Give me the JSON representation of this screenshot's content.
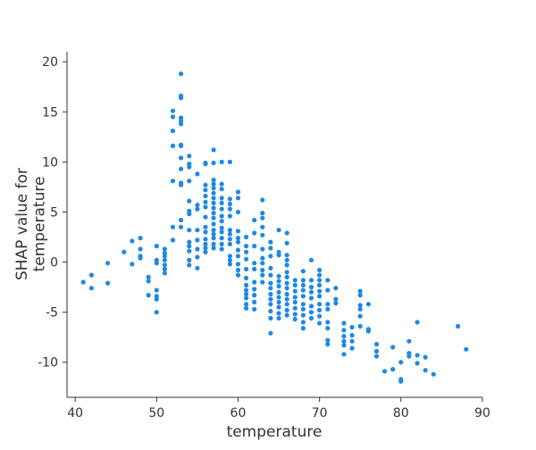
{
  "chart_data": {
    "type": "scatter",
    "title": "",
    "xlabel": "temperature",
    "ylabel": "SHAP value for\ntemperature",
    "xlim": [
      39,
      90
    ],
    "ylim": [
      -13.5,
      21
    ],
    "xticks": [
      40,
      50,
      60,
      70,
      80,
      90
    ],
    "yticks": [
      -10,
      -5,
      0,
      5,
      10,
      15,
      20
    ],
    "grid": false,
    "legend": "none",
    "point_color": "#1e88e5",
    "series": [
      {
        "points": [
          [
            41,
            -2.0
          ],
          [
            42,
            -1.3
          ],
          [
            42,
            -2.6
          ],
          [
            44,
            -0.1
          ],
          [
            44,
            -2.1
          ],
          [
            46,
            1.0
          ],
          [
            47,
            2.1
          ],
          [
            47,
            -0.2
          ],
          [
            48,
            2.4
          ],
          [
            48,
            1.3
          ],
          [
            48,
            0.6
          ],
          [
            48,
            0.4
          ],
          [
            49,
            -1.5
          ],
          [
            49,
            -1.9
          ],
          [
            49,
            -3.3
          ],
          [
            50,
            1.6
          ],
          [
            50,
            0.2
          ],
          [
            50,
            -0.1
          ],
          [
            50,
            -2.8
          ],
          [
            50,
            -3.4
          ],
          [
            50,
            -3.7
          ],
          [
            50,
            -5.0
          ],
          [
            51,
            1.3
          ],
          [
            51,
            0.9
          ],
          [
            51,
            0.6
          ],
          [
            51,
            0.2
          ],
          [
            51,
            -0.3
          ],
          [
            51,
            -0.7
          ],
          [
            51,
            -1.1
          ],
          [
            52,
            15.1
          ],
          [
            52,
            14.5
          ],
          [
            52,
            13.1
          ],
          [
            52,
            11.6
          ],
          [
            52,
            8.1
          ],
          [
            52,
            3.5
          ],
          [
            52,
            2.2
          ],
          [
            53,
            18.8
          ],
          [
            53,
            16.6
          ],
          [
            53,
            16.4
          ],
          [
            53,
            14.4
          ],
          [
            53,
            14.1
          ],
          [
            53,
            13.8
          ],
          [
            53,
            11.7
          ],
          [
            53,
            11.6
          ],
          [
            53,
            10.4
          ],
          [
            53,
            9.3
          ],
          [
            53,
            7.9
          ],
          [
            53,
            7.7
          ],
          [
            53,
            4.2
          ],
          [
            53,
            3.5
          ],
          [
            54,
            10.6
          ],
          [
            54,
            9.8
          ],
          [
            54,
            9.5
          ],
          [
            54,
            8.1
          ],
          [
            54,
            6.1
          ],
          [
            54,
            5.1
          ],
          [
            54,
            4.8
          ],
          [
            54,
            3.2
          ],
          [
            54,
            2.0
          ],
          [
            54,
            1.6
          ],
          [
            54,
            1.1
          ],
          [
            54,
            0.2
          ],
          [
            54,
            -0.3
          ],
          [
            55,
            8.8
          ],
          [
            55,
            5.7
          ],
          [
            55,
            5.3
          ],
          [
            55,
            3.2
          ],
          [
            55,
            2.2
          ],
          [
            55,
            1.3
          ],
          [
            55,
            0.5
          ],
          [
            55,
            -0.6
          ],
          [
            56,
            9.9
          ],
          [
            56,
            9.8
          ],
          [
            56,
            7.7
          ],
          [
            56,
            7.2
          ],
          [
            56,
            6.6
          ],
          [
            56,
            6.0
          ],
          [
            56,
            5.5
          ],
          [
            56,
            4.5
          ],
          [
            56,
            3.5
          ],
          [
            56,
            3.0
          ],
          [
            56,
            2.3
          ],
          [
            56,
            1.8
          ],
          [
            56,
            1.4
          ],
          [
            56,
            1.0
          ],
          [
            57,
            11.2
          ],
          [
            57,
            9.9
          ],
          [
            57,
            8.2
          ],
          [
            57,
            7.8
          ],
          [
            57,
            7.4
          ],
          [
            57,
            6.9
          ],
          [
            57,
            6.4
          ],
          [
            57,
            5.9
          ],
          [
            57,
            5.4
          ],
          [
            57,
            4.9
          ],
          [
            57,
            4.4
          ],
          [
            57,
            3.8
          ],
          [
            57,
            3.2
          ],
          [
            57,
            2.8
          ],
          [
            57,
            2.4
          ],
          [
            57,
            1.8
          ],
          [
            57,
            1.4
          ],
          [
            58,
            10.0
          ],
          [
            58,
            7.8
          ],
          [
            58,
            7.3
          ],
          [
            58,
            6.4
          ],
          [
            58,
            5.9
          ],
          [
            58,
            5.3
          ],
          [
            58,
            4.6
          ],
          [
            58,
            4.1
          ],
          [
            58,
            3.4
          ],
          [
            58,
            3.0
          ],
          [
            58,
            2.4
          ],
          [
            58,
            1.8
          ],
          [
            58,
            1.3
          ],
          [
            59,
            10.0
          ],
          [
            59,
            6.3
          ],
          [
            59,
            5.8
          ],
          [
            59,
            5.3
          ],
          [
            59,
            4.6
          ],
          [
            59,
            3.2
          ],
          [
            59,
            2.8
          ],
          [
            59,
            2.3
          ],
          [
            59,
            1.8
          ],
          [
            59,
            0.6
          ],
          [
            59,
            0.2
          ],
          [
            59,
            -0.2
          ],
          [
            60,
            7.0
          ],
          [
            60,
            6.4
          ],
          [
            60,
            5.0
          ],
          [
            60,
            3.1
          ],
          [
            60,
            2.4
          ],
          [
            60,
            2.0
          ],
          [
            60,
            1.2
          ],
          [
            60,
            0.6
          ],
          [
            60,
            -0.2
          ],
          [
            60,
            -0.8
          ],
          [
            60,
            -1.3
          ],
          [
            61,
            2.5
          ],
          [
            61,
            1.6
          ],
          [
            61,
            1.0
          ],
          [
            61,
            0.3
          ],
          [
            61,
            -0.7
          ],
          [
            61,
            -1.6
          ],
          [
            61,
            -2.3
          ],
          [
            61,
            -2.8
          ],
          [
            61,
            -3.2
          ],
          [
            61,
            -3.6
          ],
          [
            61,
            -4.2
          ],
          [
            61,
            -4.6
          ],
          [
            62,
            4.2
          ],
          [
            62,
            2.9
          ],
          [
            62,
            1.6
          ],
          [
            62,
            -0.1
          ],
          [
            62,
            -0.7
          ],
          [
            62,
            -2.0
          ],
          [
            62,
            -2.7
          ],
          [
            62,
            -3.3
          ],
          [
            62,
            -4.0
          ],
          [
            62,
            -4.7
          ],
          [
            63,
            6.2
          ],
          [
            63,
            4.9
          ],
          [
            63,
            4.4
          ],
          [
            63,
            3.5
          ],
          [
            63,
            2.7
          ],
          [
            63,
            1.3
          ],
          [
            63,
            0.4
          ],
          [
            63,
            -0.1
          ],
          [
            63,
            -0.8
          ],
          [
            63,
            -1.3
          ],
          [
            63,
            -2.0
          ],
          [
            64,
            2.0
          ],
          [
            64,
            1.4
          ],
          [
            64,
            0.6
          ],
          [
            64,
            -0.6
          ],
          [
            64,
            -1.3
          ],
          [
            64,
            -2.1
          ],
          [
            64,
            -2.6
          ],
          [
            64,
            -3.2
          ],
          [
            64,
            -3.7
          ],
          [
            64,
            -4.2
          ],
          [
            64,
            -4.9
          ],
          [
            64,
            -5.6
          ],
          [
            64,
            -7.1
          ],
          [
            65,
            3.2
          ],
          [
            65,
            1.0
          ],
          [
            65,
            0.7
          ],
          [
            65,
            -1.4
          ],
          [
            65,
            -1.9
          ],
          [
            65,
            -2.4
          ],
          [
            65,
            -3.0
          ],
          [
            65,
            -3.5
          ],
          [
            65,
            -4.0
          ],
          [
            65,
            -4.5
          ],
          [
            65,
            -5.1
          ],
          [
            65,
            -5.6
          ],
          [
            66,
            2.9
          ],
          [
            66,
            1.9
          ],
          [
            66,
            0.7
          ],
          [
            66,
            0.2
          ],
          [
            66,
            -0.3
          ],
          [
            66,
            -1.0
          ],
          [
            66,
            -1.5
          ],
          [
            66,
            -2.1
          ],
          [
            66,
            -2.6
          ],
          [
            66,
            -3.2
          ],
          [
            66,
            -3.7
          ],
          [
            66,
            -4.2
          ],
          [
            66,
            -4.8
          ],
          [
            66,
            -5.3
          ],
          [
            67,
            -1.8
          ],
          [
            67,
            -2.3
          ],
          [
            67,
            -2.9
          ],
          [
            67,
            -3.5
          ],
          [
            67,
            -4.0
          ],
          [
            67,
            -4.6
          ],
          [
            67,
            -5.2
          ],
          [
            67,
            -5.7
          ],
          [
            68,
            -0.9
          ],
          [
            68,
            -1.8
          ],
          [
            68,
            -2.3
          ],
          [
            68,
            -2.8
          ],
          [
            68,
            -3.4
          ],
          [
            68,
            -4.2
          ],
          [
            68,
            -4.7
          ],
          [
            68,
            -5.3
          ],
          [
            68,
            -6.0
          ],
          [
            68,
            -6.6
          ],
          [
            69,
            0.2
          ],
          [
            69,
            -1.8
          ],
          [
            69,
            -2.5
          ],
          [
            69,
            -3.0
          ],
          [
            69,
            -3.6
          ],
          [
            69,
            -4.4
          ],
          [
            69,
            -5.0
          ],
          [
            69,
            -5.6
          ],
          [
            70,
            -0.8
          ],
          [
            70,
            -1.3
          ],
          [
            70,
            -1.8
          ],
          [
            70,
            -2.3
          ],
          [
            70,
            -2.9
          ],
          [
            70,
            -3.4
          ],
          [
            70,
            -4.2
          ],
          [
            70,
            -4.8
          ],
          [
            70,
            -5.4
          ],
          [
            70,
            -6.1
          ],
          [
            71,
            -1.8
          ],
          [
            71,
            -2.8
          ],
          [
            71,
            -4.2
          ],
          [
            71,
            -4.7
          ],
          [
            71,
            -6.0
          ],
          [
            71,
            -6.6
          ],
          [
            71,
            -7.8
          ],
          [
            71,
            -8.2
          ],
          [
            72,
            -2.6
          ],
          [
            72,
            -3.7
          ],
          [
            72,
            -4.1
          ],
          [
            73,
            -6.1
          ],
          [
            73,
            -6.8
          ],
          [
            73,
            -7.4
          ],
          [
            73,
            -7.9
          ],
          [
            73,
            -8.3
          ],
          [
            73,
            -9.2
          ],
          [
            74,
            -6.5
          ],
          [
            74,
            -7.3
          ],
          [
            74,
            -7.9
          ],
          [
            74,
            -8.6
          ],
          [
            75,
            -2.9
          ],
          [
            75,
            -3.3
          ],
          [
            75,
            -4.3
          ],
          [
            75,
            -4.7
          ],
          [
            75,
            -5.4
          ],
          [
            75,
            -6.4
          ],
          [
            76,
            -4.2
          ],
          [
            76,
            -6.7
          ],
          [
            76,
            -6.9
          ],
          [
            77,
            -8.2
          ],
          [
            77,
            -8.9
          ],
          [
            77,
            -9.4
          ],
          [
            78,
            -10.9
          ],
          [
            79,
            -8.5
          ],
          [
            79,
            -10.7
          ],
          [
            80,
            -10.0
          ],
          [
            80,
            -11.7
          ],
          [
            80,
            -11.9
          ],
          [
            81,
            -7.9
          ],
          [
            81,
            -9.1
          ],
          [
            81,
            -9.4
          ],
          [
            82,
            -6.0
          ],
          [
            82,
            -9.3
          ],
          [
            82,
            -10.1
          ],
          [
            83,
            -9.5
          ],
          [
            83,
            -10.8
          ],
          [
            84,
            -11.2
          ],
          [
            87,
            -6.4
          ],
          [
            88,
            -8.7
          ]
        ]
      }
    ]
  }
}
